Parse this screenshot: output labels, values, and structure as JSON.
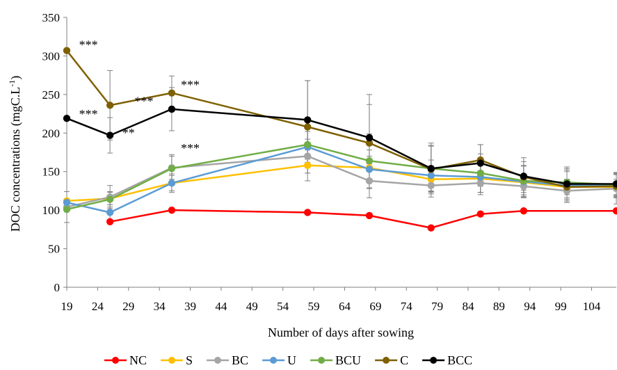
{
  "chart_data": {
    "type": "line",
    "title": "",
    "xlabel": "Number of days after sowing",
    "ylabel": "DOC concentrations (mgC.L",
    "ylabel_sup": "-1",
    "ylabel_close": ")",
    "xlim": [
      19,
      108
    ],
    "ylim": [
      0,
      350
    ],
    "xticks": [
      19,
      24,
      29,
      34,
      39,
      44,
      49,
      54,
      59,
      64,
      69,
      74,
      79,
      84,
      89,
      94,
      99,
      104
    ],
    "yticks": [
      0,
      50,
      100,
      150,
      200,
      250,
      300,
      350
    ],
    "grid": false,
    "legend_position": "bottom",
    "series": [
      {
        "name": "NC",
        "color": "#ff0000",
        "points": [
          [
            26,
            85
          ],
          [
            36,
            100
          ],
          [
            58,
            97
          ],
          [
            68,
            93
          ],
          [
            78,
            77
          ],
          [
            86,
            95
          ],
          [
            93,
            99
          ],
          [
            108,
            99
          ]
        ],
        "err": [
          0,
          0,
          0,
          0,
          0,
          0,
          0,
          0
        ]
      },
      {
        "name": "S",
        "color": "#ffc000",
        "points": [
          [
            19,
            112
          ],
          [
            26,
            115
          ],
          [
            36,
            135
          ],
          [
            58,
            158
          ],
          [
            68,
            155
          ],
          [
            78,
            140
          ],
          [
            86,
            141
          ],
          [
            93,
            136
          ],
          [
            100,
            130
          ],
          [
            108,
            130
          ]
        ],
        "err": [
          0,
          8,
          10,
          20,
          15,
          10,
          10,
          10,
          10,
          10
        ]
      },
      {
        "name": "BC",
        "color": "#a5a5a5",
        "points": [
          [
            19,
            104
          ],
          [
            26,
            117
          ],
          [
            36,
            155
          ],
          [
            58,
            170
          ],
          [
            68,
            138
          ],
          [
            78,
            132
          ],
          [
            86,
            135
          ],
          [
            93,
            131
          ],
          [
            100,
            125
          ],
          [
            108,
            128
          ]
        ],
        "err": [
          20,
          15,
          15,
          22,
          22,
          15,
          15,
          15,
          15,
          20
        ]
      },
      {
        "name": "U",
        "color": "#5b9bd5",
        "points": [
          [
            19,
            110
          ],
          [
            26,
            97
          ],
          [
            36,
            135
          ],
          [
            58,
            182
          ],
          [
            68,
            153
          ],
          [
            78,
            145
          ],
          [
            86,
            143
          ],
          [
            93,
            137
          ],
          [
            100,
            132
          ],
          [
            108,
            132
          ]
        ],
        "err": [
          0,
          10,
          12,
          20,
          25,
          20,
          20,
          20,
          20,
          15
        ]
      },
      {
        "name": "BCU",
        "color": "#70ad47",
        "points": [
          [
            19,
            101
          ],
          [
            26,
            114
          ],
          [
            36,
            154
          ],
          [
            58,
            185
          ],
          [
            68,
            164
          ],
          [
            78,
            154
          ],
          [
            86,
            148
          ],
          [
            93,
            138
          ],
          [
            100,
            136
          ],
          [
            108,
            133
          ]
        ],
        "err": [
          0,
          10,
          18,
          30,
          35,
          30,
          25,
          20,
          20,
          15
        ]
      },
      {
        "name": "C",
        "color": "#7f6000",
        "points": [
          [
            19,
            307
          ],
          [
            26,
            236
          ],
          [
            36,
            252
          ],
          [
            58,
            208
          ],
          [
            68,
            187
          ],
          [
            78,
            153
          ],
          [
            86,
            165
          ],
          [
            93,
            143
          ],
          [
            100,
            130
          ],
          [
            108,
            131
          ]
        ],
        "err": [
          0,
          45,
          22,
          60,
          50,
          30,
          20,
          20,
          20,
          15
        ]
      },
      {
        "name": "BCC",
        "color": "#000000",
        "points": [
          [
            19,
            219
          ],
          [
            26,
            197
          ],
          [
            36,
            231
          ],
          [
            58,
            217
          ],
          [
            68,
            194
          ],
          [
            78,
            154
          ],
          [
            86,
            161
          ],
          [
            93,
            144
          ],
          [
            100,
            134
          ],
          [
            108,
            134
          ]
        ],
        "err": [
          0,
          23,
          28,
          51,
          56,
          33,
          24,
          24,
          20,
          15
        ]
      }
    ],
    "annotations": [
      {
        "text": "***",
        "x": 22.5,
        "y": 318
      },
      {
        "text": "***",
        "x": 22.5,
        "y": 228
      },
      {
        "text": "**",
        "x": 29.0,
        "y": 204
      },
      {
        "text": "***",
        "x": 31.5,
        "y": 245
      },
      {
        "text": "***",
        "x": 39.0,
        "y": 266
      },
      {
        "text": "***",
        "x": 39.0,
        "y": 184
      }
    ]
  }
}
